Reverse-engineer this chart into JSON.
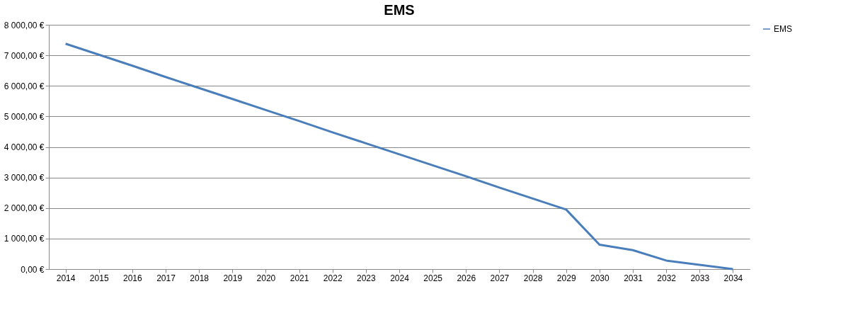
{
  "chart_data": {
    "type": "line",
    "title": "EMS",
    "categories": [
      "2014",
      "2015",
      "2016",
      "2017",
      "2018",
      "2019",
      "2020",
      "2021",
      "2022",
      "2023",
      "2024",
      "2025",
      "2026",
      "2027",
      "2028",
      "2029",
      "2030",
      "2031",
      "2032",
      "2033",
      "2034"
    ],
    "series": [
      {
        "name": "EMS",
        "color": "#4a7ebb",
        "values": [
          7380,
          7020,
          6660,
          6290,
          5930,
          5570,
          5210,
          4850,
          4480,
          4120,
          3760,
          3400,
          3040,
          2670,
          2310,
          1950,
          800,
          620,
          280,
          140,
          0
        ]
      }
    ],
    "ylim": [
      0,
      8000
    ],
    "yticks": [
      {
        "value": 0,
        "label": "0,00 €"
      },
      {
        "value": 1000,
        "label": "1 000,00 €"
      },
      {
        "value": 2000,
        "label": "2 000,00 €"
      },
      {
        "value": 3000,
        "label": "3 000,00 €"
      },
      {
        "value": 4000,
        "label": "4 000,00 €"
      },
      {
        "value": 5000,
        "label": "5 000,00 €"
      },
      {
        "value": 6000,
        "label": "6 000,00 €"
      },
      {
        "value": 7000,
        "label": "7 000,00 €"
      },
      {
        "value": 8000,
        "label": "8 000,00 €"
      }
    ],
    "grid": "y",
    "legend": "right",
    "marker": "none",
    "line_style": "solid"
  }
}
